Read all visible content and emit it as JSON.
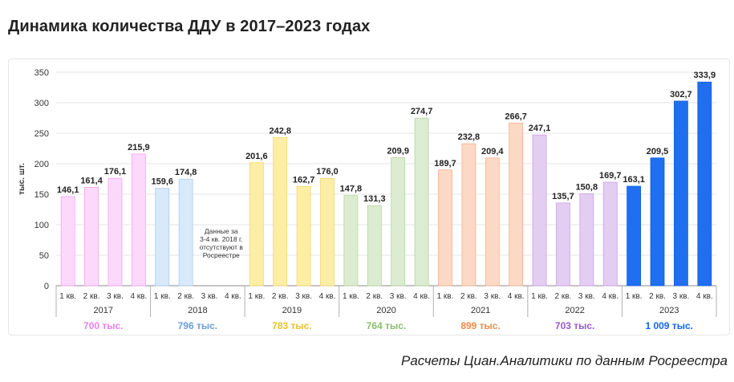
{
  "title": "Динамика количества ДДУ в 2017–2023 годах",
  "source": "Расчеты Циан.Аналитики по данным Росреестра",
  "chart_data": {
    "type": "bar",
    "ylabel": "тыс. шт.",
    "ylim": [
      0,
      350
    ],
    "yticks": [
      0,
      50,
      100,
      150,
      200,
      250,
      300,
      350
    ],
    "grid": true,
    "quarter_labels": [
      "1 кв.",
      "2 кв.",
      "3 кв.",
      "4 кв."
    ],
    "groups": [
      {
        "year": "2017",
        "total": "700 тыс.",
        "fill": "#fcd9fb",
        "stroke": "#f5a0f2",
        "total_color": "#f07cf0",
        "values": [
          146.1,
          161.4,
          176.1,
          215.9
        ],
        "labels": [
          "146,1",
          "161,4",
          "176,1",
          "215,9"
        ]
      },
      {
        "year": "2018",
        "total": "796 тыс.",
        "fill": "#d8e9f9",
        "stroke": "#a9cbea",
        "total_color": "#6b9fd4",
        "values": [
          159.6,
          174.8,
          null,
          null
        ],
        "labels": [
          "159,6",
          "174,8",
          "",
          ""
        ]
      },
      {
        "year": "2019",
        "total": "783 тыс.",
        "fill": "#fdeea6",
        "stroke": "#f2d76a",
        "total_color": "#e9c12a",
        "values": [
          201.6,
          242.8,
          162.7,
          176.0
        ],
        "labels": [
          "201,6",
          "242,8",
          "162,7",
          "176,0"
        ]
      },
      {
        "year": "2020",
        "total": "764 тыс.",
        "fill": "#dcecd0",
        "stroke": "#b5d49e",
        "total_color": "#8bbd69",
        "values": [
          147.8,
          131.3,
          209.9,
          274.7
        ],
        "labels": [
          "147,8",
          "131,3",
          "209,9",
          "274,7"
        ]
      },
      {
        "year": "2021",
        "total": "899 тыс.",
        "fill": "#fcd9c5",
        "stroke": "#f3b08e",
        "total_color": "#ef8a4e",
        "values": [
          189.7,
          232.8,
          209.4,
          266.7
        ],
        "labels": [
          "189,7",
          "232,8",
          "209,4",
          "266,7"
        ]
      },
      {
        "year": "2022",
        "total": "703 тыс.",
        "fill": "#e3cdf1",
        "stroke": "#c9a3e3",
        "total_color": "#9b57cc",
        "values": [
          247.1,
          135.7,
          150.8,
          169.7
        ],
        "labels": [
          "247,1",
          "135,7",
          "150,8",
          "169,7"
        ]
      },
      {
        "year": "2023",
        "total": "1 009 тыс.",
        "fill": "#1f6ff0",
        "stroke": "#0f5fe0",
        "total_color": "#1766e8",
        "values": [
          163.1,
          209.5,
          302.7,
          333.9
        ],
        "labels": [
          "163,1",
          "209,5",
          "302,7",
          "333,9"
        ]
      }
    ],
    "annotation": {
      "lines": [
        "Данные за",
        "3-4 кв. 2018 г.",
        "отсутствуют в",
        "Росреестре"
      ],
      "group": "2018"
    }
  }
}
